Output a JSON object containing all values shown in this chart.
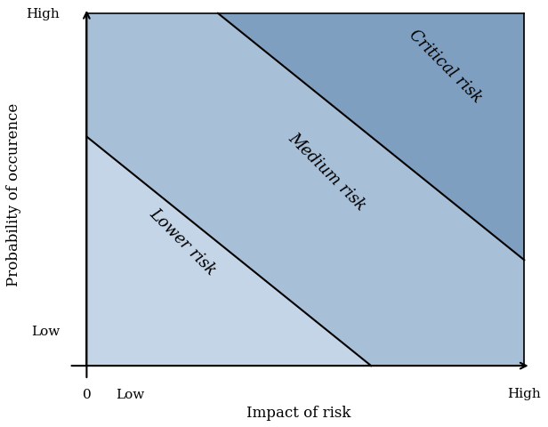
{
  "xlabel": "Impact of risk",
  "ylabel": "Probability of occurence",
  "xlim": [
    0,
    10
  ],
  "ylim": [
    0,
    10
  ],
  "x_tick_positions": [
    0,
    1.0,
    10
  ],
  "x_tick_labels": [
    "0",
    "Low",
    "High"
  ],
  "y_tick_positions": [
    1.0,
    10
  ],
  "y_tick_labels": [
    "Low",
    "High"
  ],
  "background_color": "#ffffff",
  "zone_colors": [
    "#c5d5e8",
    "#a8bfd8",
    "#7f9fc0"
  ],
  "line_color": "#000000",
  "line_width": 1.5,
  "label_lower": "Lower risk",
  "label_medium": "Medium risk",
  "label_critical": "Critical risk",
  "label_fontsize": 13,
  "axis_label_fontsize": 12,
  "tick_fontsize": 11,
  "c1": 6.5,
  "c2": 13.0
}
